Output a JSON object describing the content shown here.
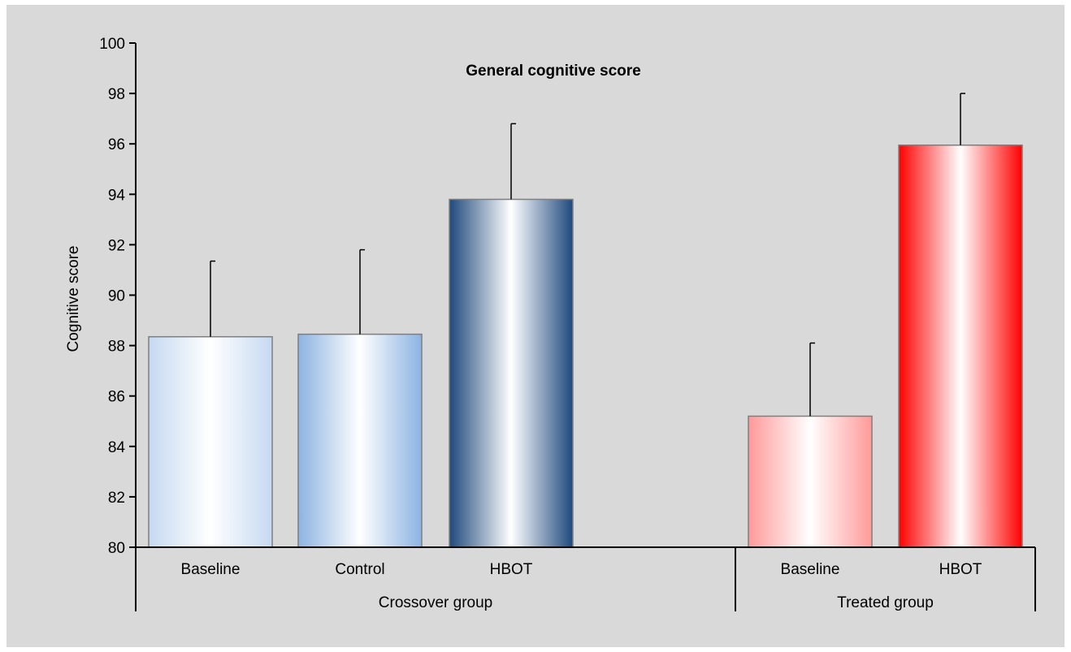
{
  "chart_data": {
    "type": "bar",
    "title": "General cognitive score",
    "ylabel": "Cognitive score",
    "ylim": [
      80,
      100
    ],
    "yticks": [
      80,
      82,
      84,
      86,
      88,
      90,
      92,
      94,
      96,
      98,
      100
    ],
    "grid": false,
    "groups": [
      {
        "name": "Crossover group",
        "bars": [
          {
            "label": "Baseline",
            "value": 88.35,
            "error": 3.0,
            "color": "#c6d9f1"
          },
          {
            "label": "Control",
            "value": 88.45,
            "error": 3.35,
            "color": "#8db3e2"
          },
          {
            "label": "HBOT",
            "value": 93.8,
            "error": 3.0,
            "color": "#1f497d"
          }
        ]
      },
      {
        "name": "Treated group",
        "bars": [
          {
            "label": "Baseline",
            "value": 85.2,
            "error": 2.9,
            "color": "#ff9999"
          },
          {
            "label": "HBOT",
            "value": 95.95,
            "error": 2.05,
            "color": "#ff0000"
          }
        ]
      }
    ]
  }
}
